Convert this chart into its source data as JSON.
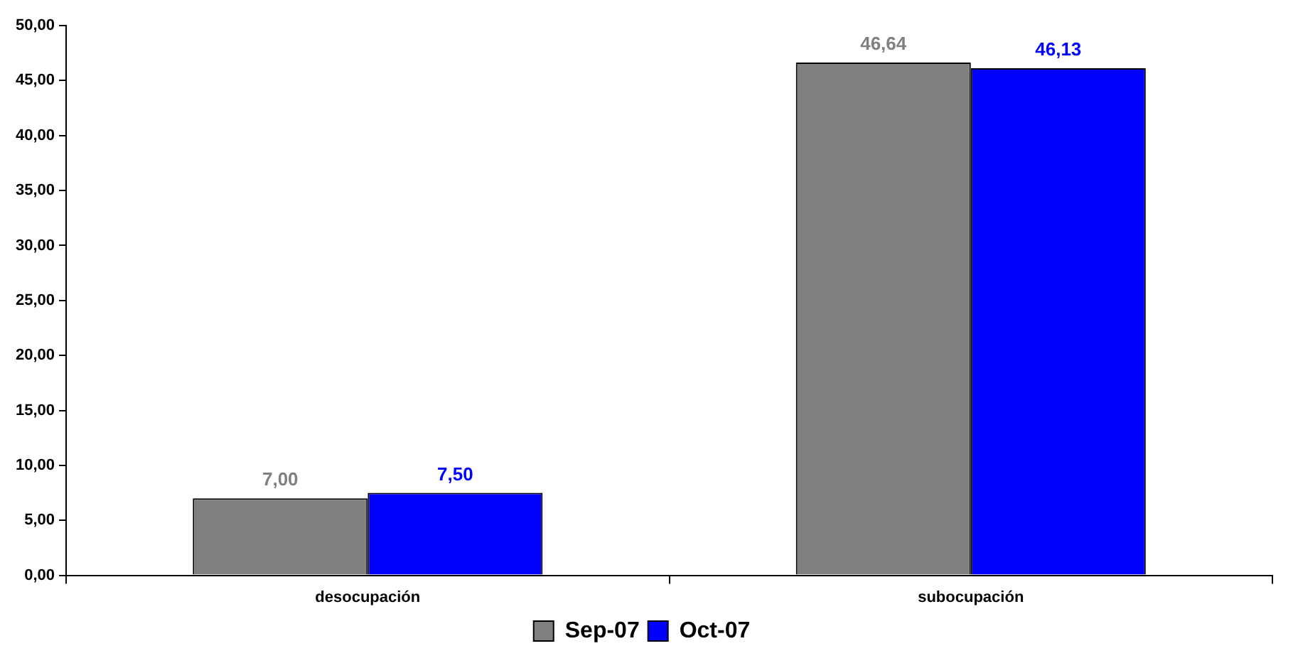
{
  "chart_data": {
    "type": "bar",
    "categories": [
      "desocupación",
      "subocupación"
    ],
    "series": [
      {
        "name": "Sep-07",
        "color": "#808080",
        "values": [
          7.0,
          46.64
        ],
        "value_labels": [
          "7,00",
          "46,64"
        ]
      },
      {
        "name": "Oct-07",
        "color": "#0000ff",
        "values": [
          7.5,
          46.13
        ],
        "value_labels": [
          "7,50",
          "46,13"
        ]
      }
    ],
    "ylim": [
      0,
      50
    ],
    "yticks": [
      {
        "value": 0,
        "label": "0,00"
      },
      {
        "value": 5,
        "label": "5,00"
      },
      {
        "value": 10,
        "label": "10,00"
      },
      {
        "value": 15,
        "label": "15,00"
      },
      {
        "value": 20,
        "label": "20,00"
      },
      {
        "value": 25,
        "label": "25,00"
      },
      {
        "value": 30,
        "label": "30,00"
      },
      {
        "value": 35,
        "label": "35,00"
      },
      {
        "value": 40,
        "label": "40,00"
      },
      {
        "value": 45,
        "label": "45,00"
      },
      {
        "value": 50,
        "label": "50,00"
      }
    ],
    "grid": false,
    "legend": "bottom"
  }
}
